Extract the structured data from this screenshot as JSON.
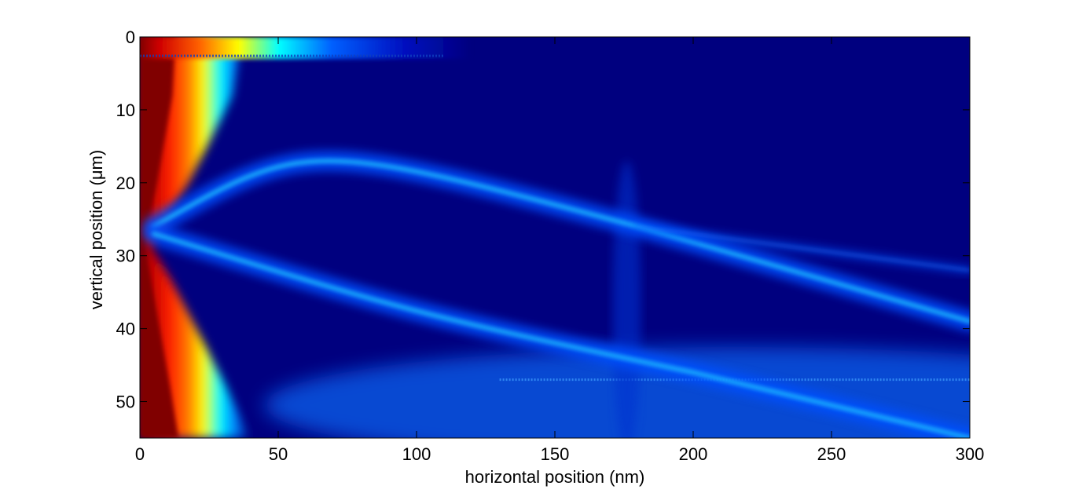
{
  "chart_data": {
    "type": "heatmap",
    "title": "",
    "xlabel": "horizontal position (nm)",
    "ylabel": "vertical position (μm)",
    "xlim": [
      0,
      300
    ],
    "ylim": [
      55,
      0
    ],
    "y_axis_direction": "top-to-bottom (reversed)",
    "xticks": [
      0,
      50,
      100,
      150,
      200,
      250,
      300
    ],
    "yticks": [
      0,
      10,
      20,
      30,
      40,
      50
    ],
    "colormap": "jet",
    "colors": {
      "low": "#00007f",
      "mid_low": "#0050ff",
      "mid": "#00d0ff",
      "mid_high": "#ffff00",
      "high": "#ff2000",
      "max": "#800000"
    },
    "grid": false,
    "legend": "none",
    "features": [
      {
        "name": "upper-branch",
        "x": [
          5,
          60,
          180,
          300
        ],
        "y": [
          26,
          14,
          26,
          39
        ]
      },
      {
        "name": "lower-branch",
        "x": [
          5,
          100,
          200,
          300
        ],
        "y": [
          27,
          38,
          46,
          55
        ]
      },
      {
        "name": "faint-branch",
        "x": [
          180,
          300
        ],
        "y": [
          26,
          32
        ]
      },
      {
        "name": "lower-lobe",
        "x": [
          130,
          300
        ],
        "y": [
          47,
          50
        ]
      }
    ]
  }
}
